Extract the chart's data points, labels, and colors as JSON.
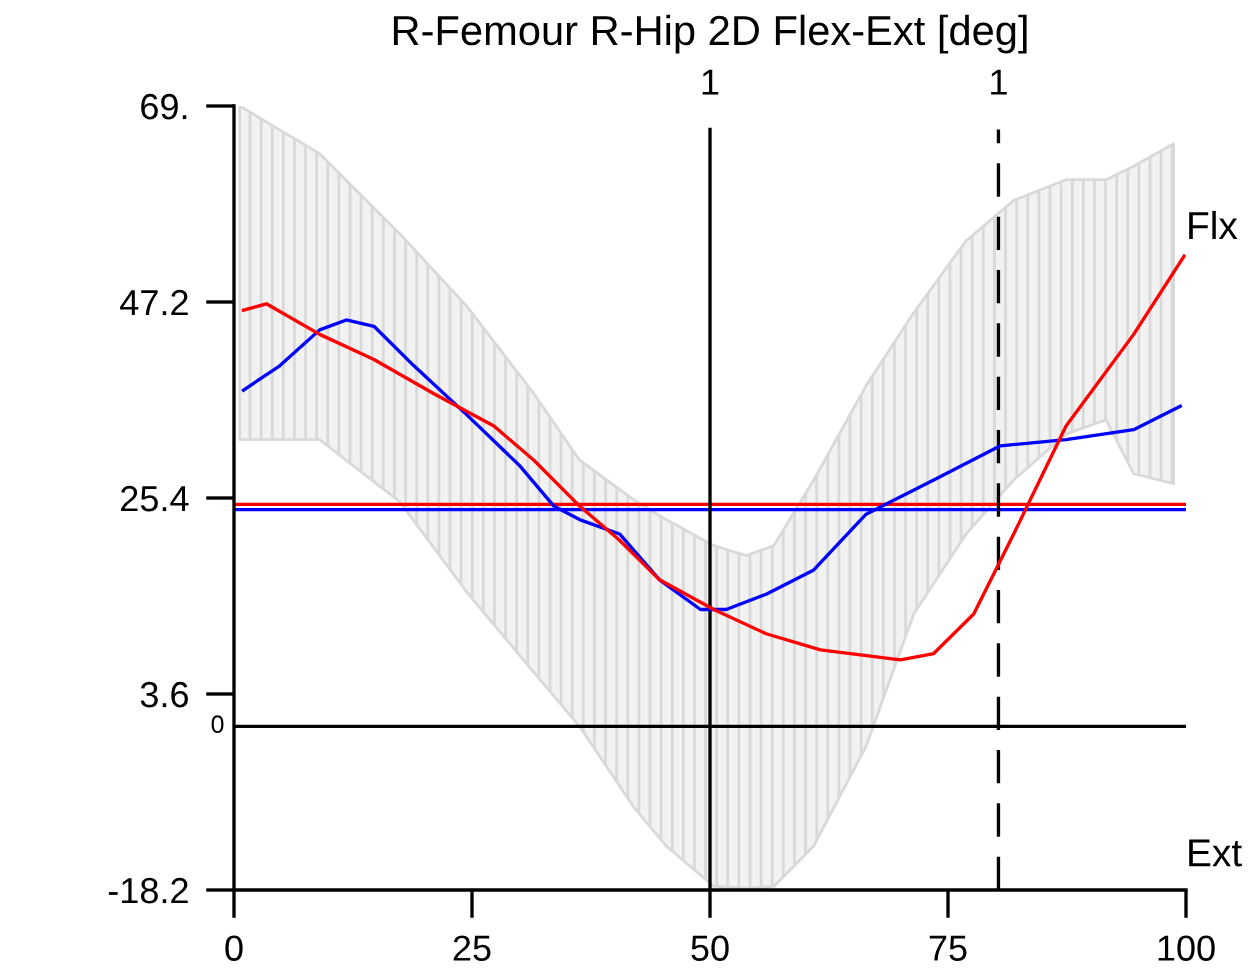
{
  "chart_data": {
    "type": "line",
    "title": "R-Femour R-Hip 2D Flex-Ext [deg]",
    "xlim": [
      0,
      100
    ],
    "xticks": [
      0,
      25,
      50,
      75,
      100
    ],
    "ylim": [
      -18.2,
      69
    ],
    "yticks": [
      {
        "value": 69,
        "label": "69."
      },
      47.2,
      25.4,
      3.6,
      -18.2
    ],
    "grid": false,
    "legend": false,
    "line_style": "solid",
    "marker": "none",
    "series": [
      {
        "type": "area",
        "color": "#d9d9d9",
        "values": [
          null,
          null,
          null,
          null,
          null,
          null,
          null,
          null,
          null,
          null,
          null,
          null,
          null,
          null,
          null,
          null,
          null,
          null,
          null,
          null
        ],
        "x": [
          0.6,
          9,
          17.4,
          24.4,
          31.5,
          36.3,
          42,
          45.4,
          50.4,
          53.8,
          56.7,
          60.9,
          66.4,
          71.4,
          76.9,
          81.9,
          87.4,
          91.6,
          94.5,
          98.7
        ],
        "upper": [
          69,
          63.7,
          54.8,
          46.8,
          37,
          29.6,
          25.2,
          23,
          20.1,
          19,
          20.1,
          27.4,
          37.9,
          46,
          54,
          58.5,
          60.8,
          60.8,
          62.3,
          64.8
        ],
        "lower": [
          31.9,
          31.9,
          25,
          15,
          6,
          0,
          -9,
          -13.3,
          -17.8,
          -18,
          -17.8,
          -13.3,
          -2.2,
          12.5,
          21.4,
          27.4,
          32.5,
          34.1,
          28.1,
          27
        ]
      },
      {
        "color": "#0000ff",
        "x": [
          1,
          4.8,
          9,
          11.8,
          14.7,
          18.9,
          24.4,
          30,
          33.6,
          36.3,
          40.5,
          44.7,
          49,
          51.7,
          55.9,
          60.9,
          66.4,
          73.5,
          80.5,
          87.4,
          94.5,
          99.4
        ],
        "values": [
          37.4,
          40.1,
          44.1,
          45.2,
          44.5,
          40.1,
          34.7,
          29,
          24.5,
          23,
          21.4,
          16.3,
          13,
          13,
          14.7,
          17.4,
          23.6,
          27.4,
          31.2,
          31.9,
          33,
          35.6
        ]
      },
      {
        "color": "#ff0000",
        "x": [
          1,
          3.4,
          9,
          14.7,
          21,
          27.3,
          31.5,
          36.3,
          40.5,
          44.7,
          50.4,
          55.9,
          61.6,
          70,
          73.5,
          77.7,
          81.9,
          87.4,
          94.5,
          99.8
        ],
        "values": [
          46.3,
          47,
          43.6,
          40.8,
          37,
          33.4,
          29.6,
          24.5,
          20.7,
          16.3,
          13,
          10.3,
          8.5,
          7.4,
          8.1,
          12.5,
          21.4,
          33.4,
          43.6,
          52.3
        ]
      }
    ],
    "ref_lines": [
      {
        "axis": "y",
        "value": 0,
        "label": "0",
        "color": "#000000",
        "line_style": "solid"
      },
      {
        "axis": "y",
        "value": 24.7,
        "color": "#ff0000",
        "line_style": "solid"
      },
      {
        "axis": "y",
        "value": 24.1,
        "color": "#0000ff",
        "line_style": "solid"
      },
      {
        "axis": "x",
        "value": 50,
        "color": "#000000",
        "line_style": "solid"
      },
      {
        "axis": "x",
        "value": 80.3,
        "color": "#000000",
        "line_style": "dashed"
      }
    ],
    "annotations": [
      "Flx",
      "Ext",
      "1",
      "1"
    ]
  }
}
